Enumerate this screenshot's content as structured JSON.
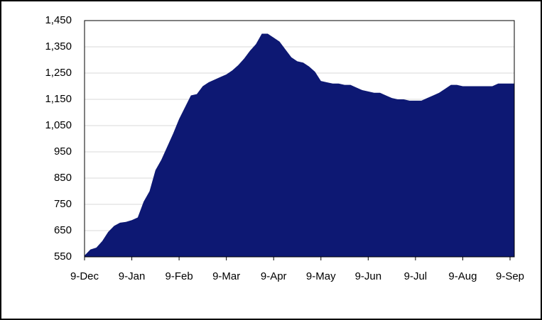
{
  "chart_data": {
    "type": "area",
    "color": "#0d1873",
    "grid": true,
    "categories": [
      "9-Dec",
      null,
      null,
      null,
      null,
      null,
      null,
      null,
      "9-Jan",
      null,
      null,
      null,
      null,
      null,
      null,
      null,
      "9-Feb",
      null,
      null,
      null,
      null,
      null,
      null,
      null,
      "9-Mar",
      null,
      null,
      null,
      null,
      null,
      null,
      null,
      "9-Apr",
      null,
      null,
      null,
      null,
      null,
      null,
      null,
      "9-May",
      null,
      null,
      null,
      null,
      null,
      null,
      null,
      "9-Jun",
      null,
      null,
      null,
      null,
      null,
      null,
      null,
      "9-Jul",
      null,
      null,
      null,
      null,
      null,
      null,
      null,
      "9-Aug",
      null,
      null,
      null,
      null,
      null,
      null,
      null,
      "9-Sep"
    ],
    "values": [
      555,
      578,
      585,
      610,
      645,
      668,
      680,
      683,
      690,
      700,
      760,
      800,
      880,
      920,
      970,
      1020,
      1075,
      1120,
      1165,
      1170,
      1200,
      1215,
      1225,
      1235,
      1245,
      1260,
      1280,
      1305,
      1335,
      1360,
      1400,
      1400,
      1385,
      1370,
      1340,
      1310,
      1295,
      1290,
      1275,
      1255,
      1220,
      1215,
      1210,
      1210,
      1205,
      1205,
      1195,
      1185,
      1180,
      1175,
      1175,
      1165,
      1155,
      1150,
      1150,
      1145,
      1145,
      1145,
      1155,
      1165,
      1175,
      1190,
      1205,
      1205,
      1200,
      1200,
      1200,
      1200,
      1200,
      1200,
      1210,
      1210,
      1210
    ],
    "ylim": [
      550,
      1450
    ],
    "yticks": [
      550,
      650,
      750,
      850,
      950,
      {
        "value": 1050,
        "label": "1,050"
      },
      {
        "value": 1150,
        "label": "1,150"
      },
      {
        "value": 1250,
        "label": "1,250"
      },
      {
        "value": 1350,
        "label": "1,350"
      },
      {
        "value": 1450,
        "label": "1,450"
      }
    ]
  }
}
